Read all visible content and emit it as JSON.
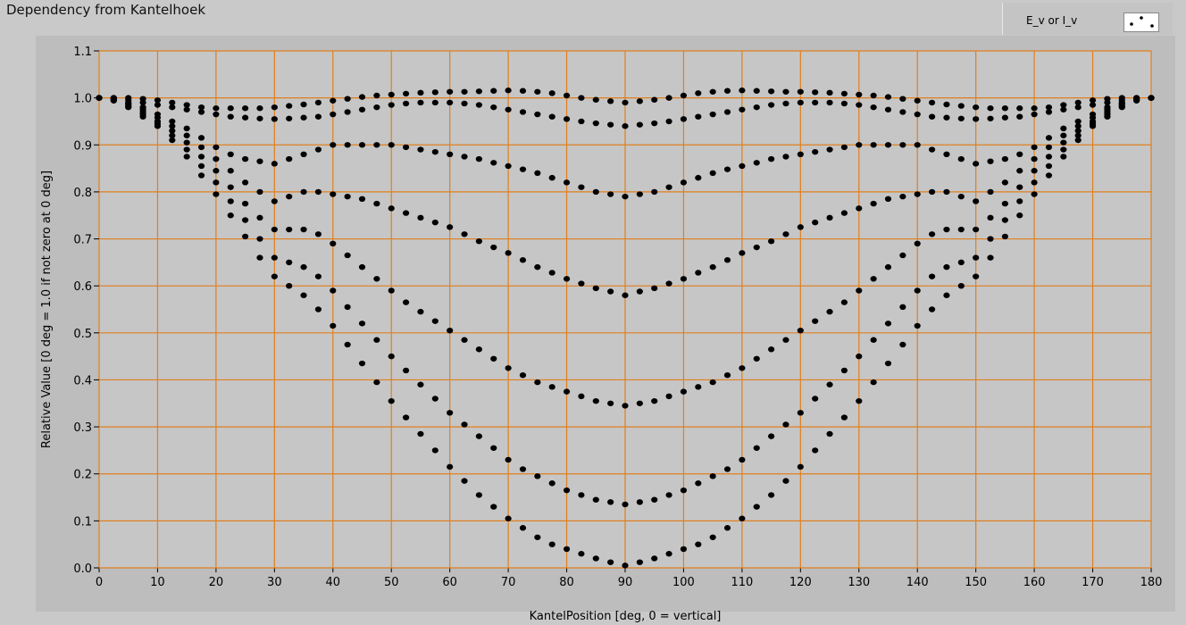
{
  "window": {
    "title": "Dependency from Kantelhoek"
  },
  "legend": {
    "label": "E_v or I_v",
    "marker_icon": "scatter-dots-icon"
  },
  "colors": {
    "plot_bg": "#c6c6c6",
    "grid": "#e07f1e",
    "markers": "#000000",
    "frame": "#c9c9c9"
  },
  "chart_data": {
    "type": "scatter",
    "title": "Dependency from Kantelhoek",
    "xlabel": "KantelPosition [deg, 0 = vertical]",
    "ylabel": "Relative Value [0 deg = 1.0 if not zero at 0 deg]",
    "xlim": [
      0,
      180
    ],
    "ylim": [
      0,
      1.1
    ],
    "grid": true,
    "legend_position": "top-right",
    "x_ticks": [
      0,
      10,
      20,
      30,
      40,
      50,
      60,
      70,
      80,
      90,
      100,
      110,
      120,
      130,
      140,
      150,
      160,
      170,
      180
    ],
    "y_ticks": [
      0.0,
      0.1,
      0.2,
      0.3,
      0.4,
      0.5,
      0.6,
      0.7,
      0.8,
      0.9,
      1.0,
      1.1
    ],
    "y_tick_labels": [
      "0.0",
      "0.1",
      "0.2",
      "0.3",
      "0.4",
      "0.5",
      "0.6",
      "0.7",
      "0.8",
      "0.9",
      "1.0",
      "1.1"
    ],
    "x_values": [
      0,
      2.5,
      5,
      7.5,
      10,
      12.5,
      15,
      17.5,
      20,
      22.5,
      25,
      27.5,
      30,
      32.5,
      35,
      37.5,
      40,
      42.5,
      45,
      47.5,
      50,
      52.5,
      55,
      57.5,
      60,
      62.5,
      65,
      67.5,
      70,
      72.5,
      75,
      77.5,
      80,
      82.5,
      85,
      87.5,
      90,
      92.5,
      95,
      97.5,
      100,
      102.5,
      105,
      107.5,
      110,
      112.5,
      115,
      117.5,
      120,
      122.5,
      125,
      127.5,
      130,
      132.5,
      135,
      137.5,
      140,
      142.5,
      145,
      147.5,
      150,
      152.5,
      155,
      157.5,
      160,
      162.5,
      165,
      167.5,
      170,
      172.5,
      175,
      177.5,
      180
    ],
    "series": [
      {
        "name": "E_v or I_v",
        "curves": [
          {
            "y": [
              1.0,
              1.0,
              1.0,
              0.998,
              0.995,
              0.99,
              0.985,
              0.98,
              0.978,
              0.978,
              0.978,
              0.978,
              0.98,
              0.983,
              0.986,
              0.99,
              0.994,
              0.998,
              1.002,
              1.005,
              1.007,
              1.009,
              1.011,
              1.012,
              1.013,
              1.013,
              1.014,
              1.015,
              1.016,
              1.015,
              1.013,
              1.01,
              1.005,
              1.0,
              0.996,
              0.993,
              0.99,
              0.993,
              0.996,
              1.0,
              1.005,
              1.01,
              1.013,
              1.015,
              1.016,
              1.015,
              1.014,
              1.013,
              1.013,
              1.012,
              1.011,
              1.009,
              1.007,
              1.005,
              1.002,
              0.998,
              0.994,
              0.99,
              0.986,
              0.983,
              0.98,
              0.978,
              0.978,
              0.978,
              0.978,
              0.98,
              0.985,
              0.99,
              0.995,
              0.998,
              1.0,
              1.0,
              1.0
            ]
          },
          {
            "y": [
              1.0,
              1.0,
              0.995,
              0.99,
              0.985,
              0.98,
              0.975,
              0.97,
              0.965,
              0.96,
              0.958,
              0.956,
              0.955,
              0.956,
              0.958,
              0.96,
              0.965,
              0.97,
              0.975,
              0.98,
              0.985,
              0.988,
              0.99,
              0.99,
              0.99,
              0.988,
              0.985,
              0.98,
              0.975,
              0.97,
              0.965,
              0.96,
              0.955,
              0.95,
              0.946,
              0.943,
              0.94,
              0.943,
              0.946,
              0.95,
              0.955,
              0.96,
              0.965,
              0.97,
              0.975,
              0.98,
              0.985,
              0.988,
              0.99,
              0.99,
              0.99,
              0.988,
              0.985,
              0.98,
              0.975,
              0.97,
              0.965,
              0.96,
              0.958,
              0.956,
              0.955,
              0.956,
              0.958,
              0.96,
              0.965,
              0.97,
              0.975,
              0.98,
              0.985,
              0.99,
              0.995,
              1.0,
              1.0
            ]
          },
          {
            "y": [
              1.0,
              0.998,
              0.99,
              0.98,
              0.965,
              0.95,
              0.935,
              0.915,
              0.895,
              0.88,
              0.87,
              0.865,
              0.86,
              0.87,
              0.88,
              0.89,
              0.9,
              0.9,
              0.9,
              0.9,
              0.9,
              0.895,
              0.89,
              0.885,
              0.88,
              0.875,
              0.87,
              0.862,
              0.855,
              0.848,
              0.84,
              0.83,
              0.82,
              0.81,
              0.8,
              0.795,
              0.79,
              0.795,
              0.8,
              0.81,
              0.82,
              0.83,
              0.84,
              0.848,
              0.855,
              0.862,
              0.87,
              0.875,
              0.88,
              0.885,
              0.89,
              0.895,
              0.9,
              0.9,
              0.9,
              0.9,
              0.9,
              0.89,
              0.88,
              0.87,
              0.86,
              0.865,
              0.87,
              0.88,
              0.895,
              0.915,
              0.935,
              0.95,
              0.965,
              0.98,
              0.99,
              0.998,
              1.0
            ]
          },
          {
            "y": [
              1.0,
              0.997,
              0.988,
              0.975,
              0.958,
              0.94,
              0.92,
              0.895,
              0.87,
              0.845,
              0.82,
              0.8,
              0.78,
              0.79,
              0.8,
              0.8,
              0.795,
              0.79,
              0.785,
              0.775,
              0.765,
              0.755,
              0.745,
              0.735,
              0.725,
              0.71,
              0.695,
              0.682,
              0.67,
              0.655,
              0.64,
              0.628,
              0.615,
              0.605,
              0.595,
              0.588,
              0.58,
              0.588,
              0.595,
              0.605,
              0.615,
              0.628,
              0.64,
              0.655,
              0.67,
              0.682,
              0.695,
              0.71,
              0.725,
              0.735,
              0.745,
              0.755,
              0.765,
              0.775,
              0.785,
              0.79,
              0.795,
              0.8,
              0.8,
              0.79,
              0.78,
              0.8,
              0.82,
              0.845,
              0.87,
              0.895,
              0.92,
              0.94,
              0.958,
              0.975,
              0.988,
              0.997,
              1.0
            ]
          },
          {
            "y": [
              1.0,
              0.996,
              0.985,
              0.97,
              0.95,
              0.93,
              0.905,
              0.875,
              0.845,
              0.81,
              0.775,
              0.745,
              0.72,
              0.72,
              0.72,
              0.71,
              0.69,
              0.665,
              0.64,
              0.615,
              0.59,
              0.565,
              0.545,
              0.525,
              0.505,
              0.485,
              0.465,
              0.445,
              0.425,
              0.41,
              0.395,
              0.385,
              0.375,
              0.365,
              0.355,
              0.35,
              0.345,
              0.35,
              0.355,
              0.365,
              0.375,
              0.385,
              0.395,
              0.41,
              0.425,
              0.445,
              0.465,
              0.485,
              0.505,
              0.525,
              0.545,
              0.565,
              0.59,
              0.615,
              0.64,
              0.665,
              0.69,
              0.71,
              0.72,
              0.72,
              0.72,
              0.745,
              0.775,
              0.81,
              0.845,
              0.875,
              0.905,
              0.93,
              0.95,
              0.97,
              0.985,
              0.996,
              1.0
            ]
          },
          {
            "y": [
              1.0,
              0.995,
              0.982,
              0.965,
              0.945,
              0.92,
              0.89,
              0.855,
              0.82,
              0.78,
              0.74,
              0.7,
              0.66,
              0.65,
              0.64,
              0.62,
              0.59,
              0.555,
              0.52,
              0.485,
              0.45,
              0.42,
              0.39,
              0.36,
              0.33,
              0.305,
              0.28,
              0.255,
              0.23,
              0.21,
              0.195,
              0.18,
              0.165,
              0.155,
              0.145,
              0.14,
              0.135,
              0.14,
              0.145,
              0.155,
              0.165,
              0.18,
              0.195,
              0.21,
              0.23,
              0.255,
              0.28,
              0.305,
              0.33,
              0.36,
              0.39,
              0.42,
              0.45,
              0.485,
              0.52,
              0.555,
              0.59,
              0.62,
              0.64,
              0.65,
              0.66,
              0.7,
              0.74,
              0.78,
              0.82,
              0.855,
              0.89,
              0.92,
              0.945,
              0.965,
              0.982,
              0.995,
              1.0
            ]
          },
          {
            "y": [
              1.0,
              0.994,
              0.98,
              0.96,
              0.94,
              0.91,
              0.875,
              0.835,
              0.795,
              0.75,
              0.705,
              0.66,
              0.62,
              0.6,
              0.58,
              0.55,
              0.515,
              0.475,
              0.435,
              0.395,
              0.355,
              0.32,
              0.285,
              0.25,
              0.215,
              0.185,
              0.155,
              0.13,
              0.105,
              0.085,
              0.065,
              0.05,
              0.04,
              0.03,
              0.02,
              0.012,
              0.005,
              0.012,
              0.02,
              0.03,
              0.04,
              0.05,
              0.065,
              0.085,
              0.105,
              0.13,
              0.155,
              0.185,
              0.215,
              0.25,
              0.285,
              0.32,
              0.355,
              0.395,
              0.435,
              0.475,
              0.515,
              0.55,
              0.58,
              0.6,
              0.62,
              0.66,
              0.705,
              0.75,
              0.795,
              0.835,
              0.875,
              0.91,
              0.94,
              0.96,
              0.98,
              0.994,
              1.0
            ]
          }
        ]
      }
    ]
  }
}
